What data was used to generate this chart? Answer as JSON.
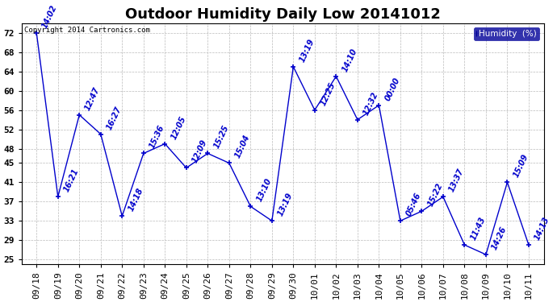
{
  "title": "Outdoor Humidity Daily Low 20141012",
  "copyright": "Copyright 2014 Cartronics.com",
  "legend_label": "Humidity  (%)",
  "ylim": [
    24,
    74
  ],
  "yticks": [
    25,
    29,
    33,
    37,
    41,
    45,
    48,
    52,
    56,
    60,
    64,
    68,
    72
  ],
  "background_color": "#ffffff",
  "grid_color": "#bbbbbb",
  "line_color": "#0000cc",
  "dates": [
    "09/18",
    "09/19",
    "09/20",
    "09/21",
    "09/22",
    "09/23",
    "09/24",
    "09/25",
    "09/26",
    "09/27",
    "09/28",
    "09/29",
    "09/30",
    "10/01",
    "10/02",
    "10/03",
    "10/04",
    "10/05",
    "10/06",
    "10/07",
    "10/08",
    "10/09",
    "10/10",
    "10/11"
  ],
  "values": [
    72,
    38,
    55,
    51,
    34,
    47,
    49,
    44,
    47,
    45,
    36,
    33,
    65,
    56,
    63,
    54,
    57,
    33,
    35,
    38,
    28,
    26,
    41,
    28
  ],
  "labels": [
    "14:02",
    "16:21",
    "12:47",
    "16:27",
    "14:18",
    "15:36",
    "12:05",
    "12:09",
    "15:25",
    "15:04",
    "13:10",
    "13:19",
    "13:19",
    "12:25",
    "14:10",
    "12:32",
    "00:00",
    "05:46",
    "15:22",
    "13:37",
    "11:43",
    "14:26",
    "15:09",
    "14:13"
  ],
  "title_fontsize": 13,
  "tick_fontsize": 8,
  "label_fontsize": 7
}
